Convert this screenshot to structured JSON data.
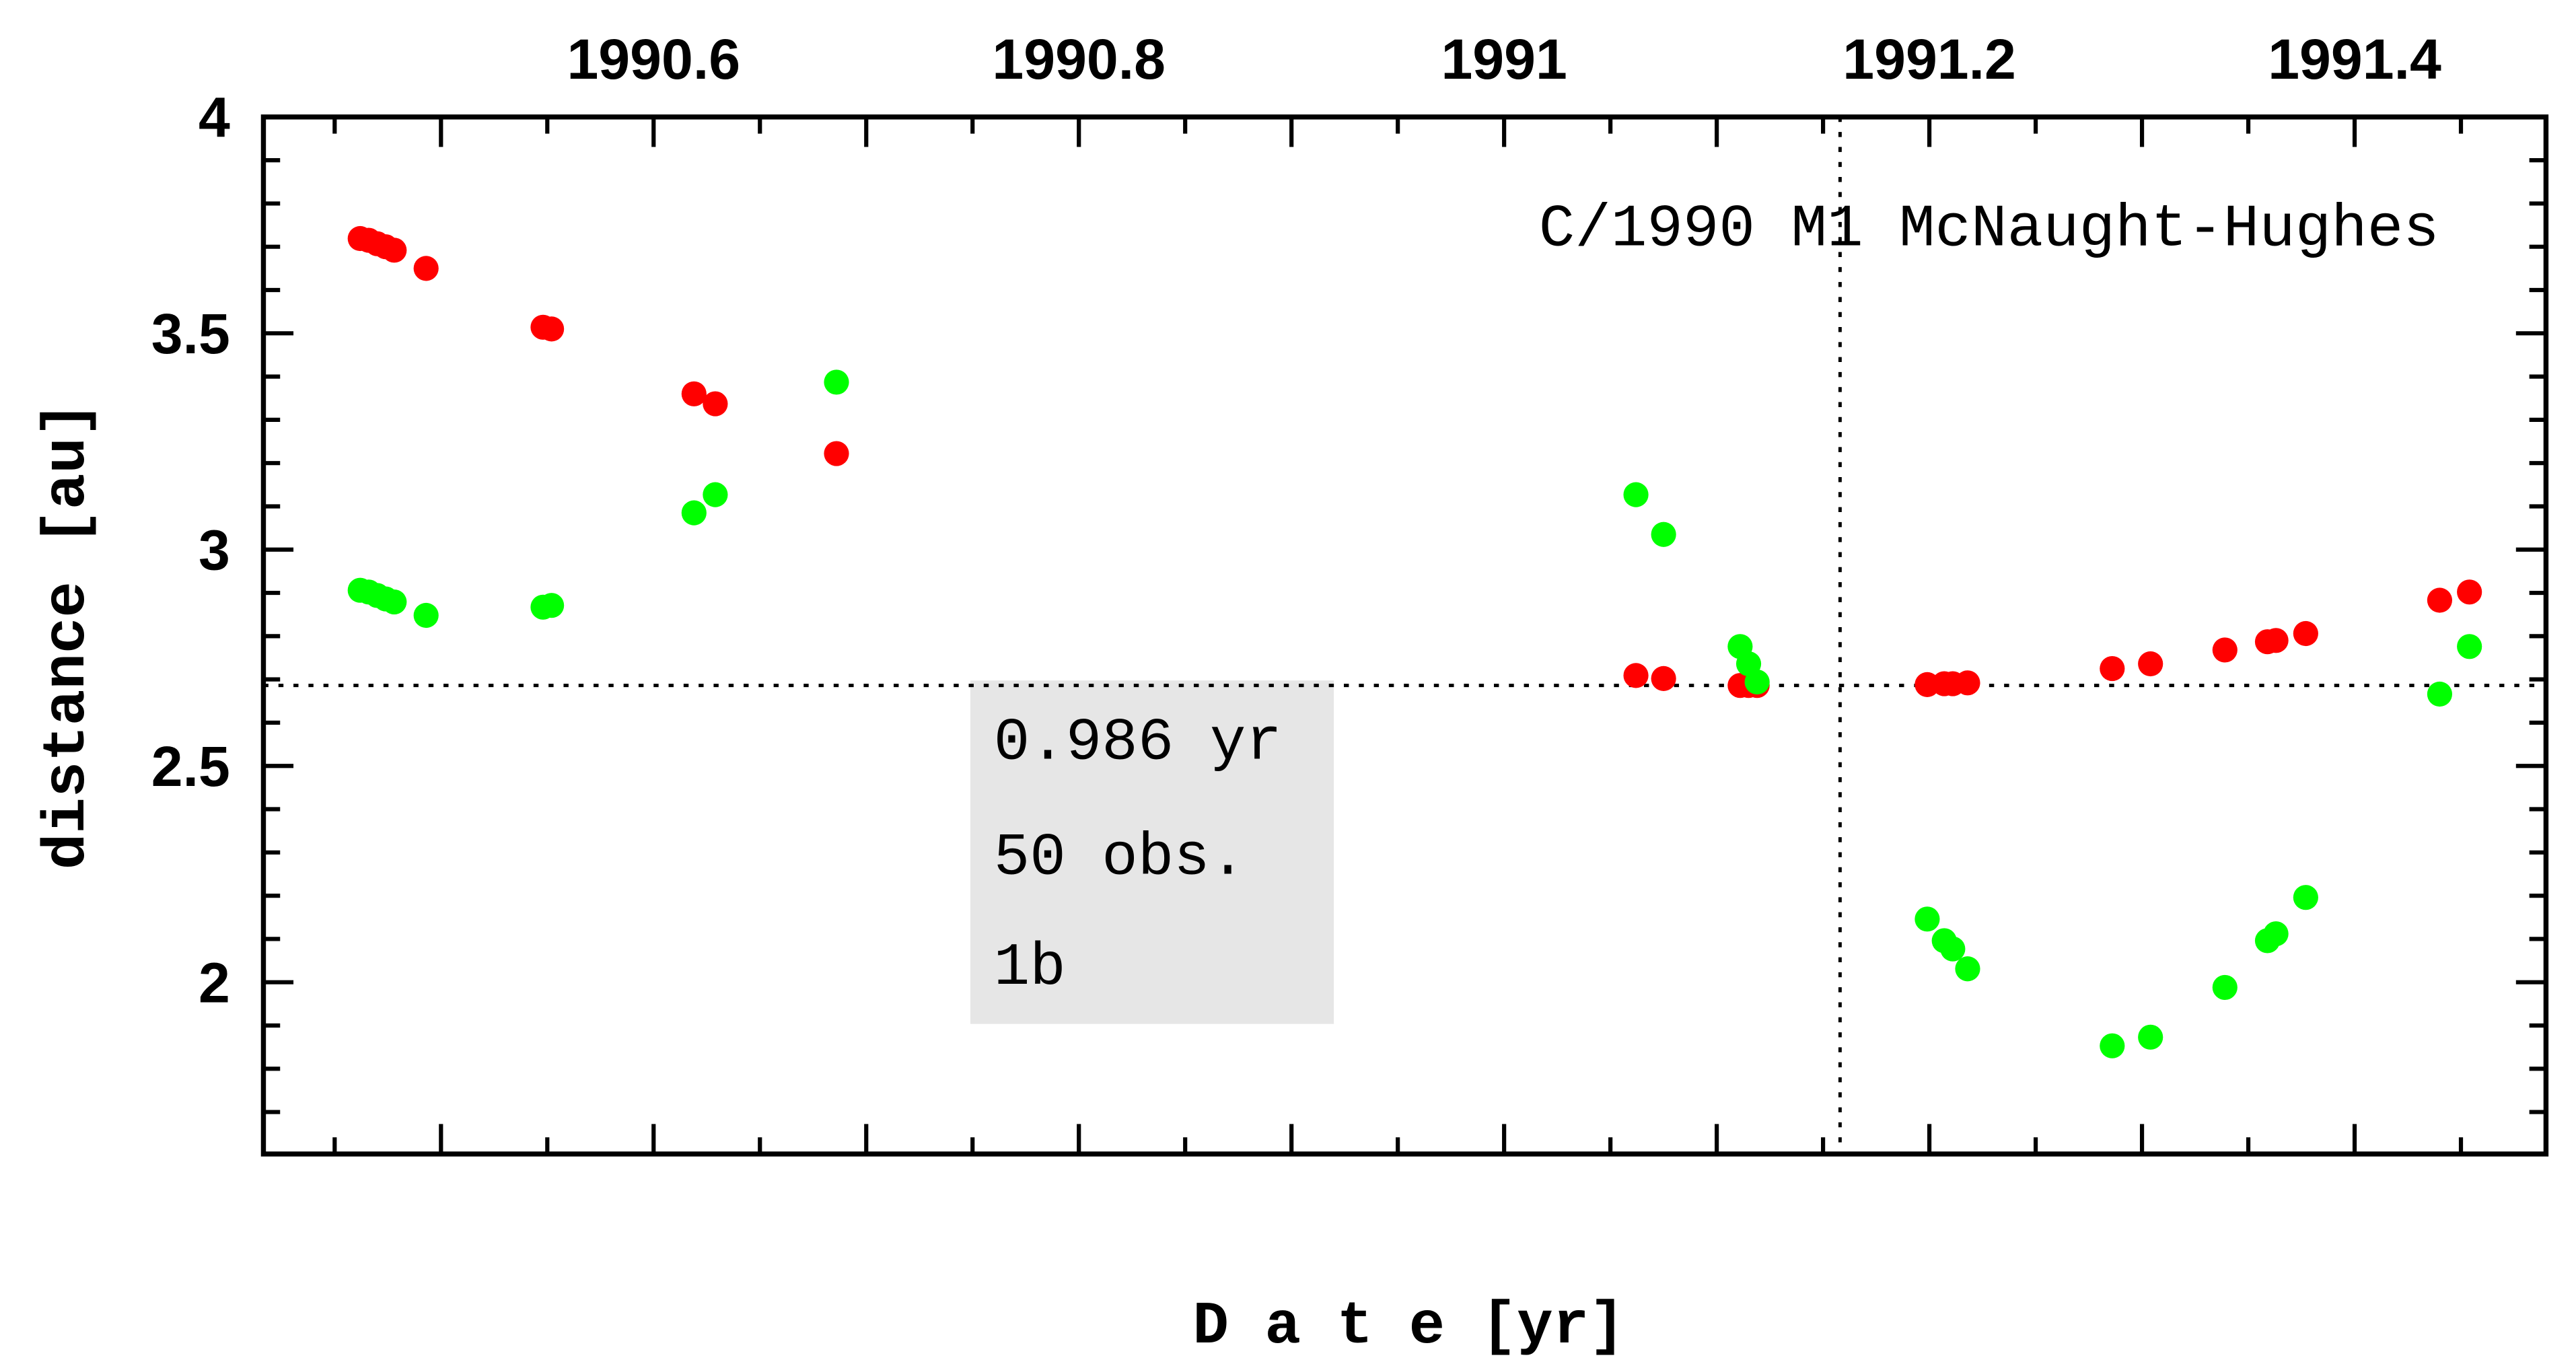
{
  "chart_data": {
    "type": "scatter",
    "title": "C/1990 M1 McNaught-Hughes",
    "xlabel": "D a t e [yr]",
    "ylabel": "distance [au]",
    "xlim": [
      1990.4165,
      1991.49
    ],
    "ylim": [
      1.603,
      4.0
    ],
    "x_ticks": [
      1990.6,
      1990.8,
      1991,
      1991.2,
      1991.4
    ],
    "x_tick_labels": [
      "1990.6",
      "1990.8",
      "1991",
      "1991.2",
      "1991.4"
    ],
    "y_ticks": [
      2,
      2.5,
      3,
      3.5,
      4
    ],
    "y_tick_labels": [
      "2",
      "2.5",
      "3",
      "3.5",
      "4"
    ],
    "grid": false,
    "reference_lines": {
      "vertical_x": 1991.158,
      "horizontal_y": 2.686
    },
    "annotations": [
      "0.986 yr",
      "50 obs.",
      "1b"
    ],
    "series": [
      {
        "name": "red",
        "color": "#ff0000",
        "points": [
          [
            1990.462,
            3.719
          ],
          [
            1990.466,
            3.715
          ],
          [
            1990.47,
            3.707
          ],
          [
            1990.474,
            3.7
          ],
          [
            1990.478,
            3.692
          ],
          [
            1990.493,
            3.65
          ],
          [
            1990.548,
            3.514
          ],
          [
            1990.552,
            3.51
          ],
          [
            1990.619,
            3.36
          ],
          [
            1990.629,
            3.337
          ],
          [
            1990.686,
            3.222
          ],
          [
            1991.062,
            2.709
          ],
          [
            1991.075,
            2.702
          ],
          [
            1991.111,
            2.686
          ],
          [
            1991.115,
            2.686
          ],
          [
            1991.119,
            2.686
          ],
          [
            1991.199,
            2.688
          ],
          [
            1991.207,
            2.69
          ],
          [
            1991.211,
            2.69
          ],
          [
            1991.218,
            2.692
          ],
          [
            1991.286,
            2.725
          ],
          [
            1991.304,
            2.736
          ],
          [
            1991.339,
            2.768
          ],
          [
            1991.359,
            2.787
          ],
          [
            1991.363,
            2.79
          ],
          [
            1991.377,
            2.806
          ],
          [
            1991.44,
            2.883
          ],
          [
            1991.454,
            2.902
          ]
        ]
      },
      {
        "name": "green",
        "color": "#00ff00",
        "points": [
          [
            1990.462,
            2.906
          ],
          [
            1990.466,
            2.902
          ],
          [
            1990.47,
            2.894
          ],
          [
            1990.474,
            2.886
          ],
          [
            1990.478,
            2.879
          ],
          [
            1990.493,
            2.848
          ],
          [
            1990.548,
            2.867
          ],
          [
            1990.552,
            2.871
          ],
          [
            1990.619,
            3.085
          ],
          [
            1990.629,
            3.127
          ],
          [
            1990.686,
            3.387
          ],
          [
            1991.062,
            3.127
          ],
          [
            1991.075,
            3.035
          ],
          [
            1991.111,
            2.776
          ],
          [
            1991.115,
            2.736
          ],
          [
            1991.119,
            2.694
          ],
          [
            1991.199,
            2.146
          ],
          [
            1991.207,
            2.096
          ],
          [
            1991.211,
            2.077
          ],
          [
            1991.218,
            2.031
          ],
          [
            1991.286,
            1.853
          ],
          [
            1991.304,
            1.873
          ],
          [
            1991.339,
            1.988
          ],
          [
            1991.359,
            2.096
          ],
          [
            1991.363,
            2.112
          ],
          [
            1991.377,
            2.196
          ],
          [
            1991.44,
            2.666
          ],
          [
            1991.454,
            2.776
          ]
        ]
      }
    ]
  }
}
